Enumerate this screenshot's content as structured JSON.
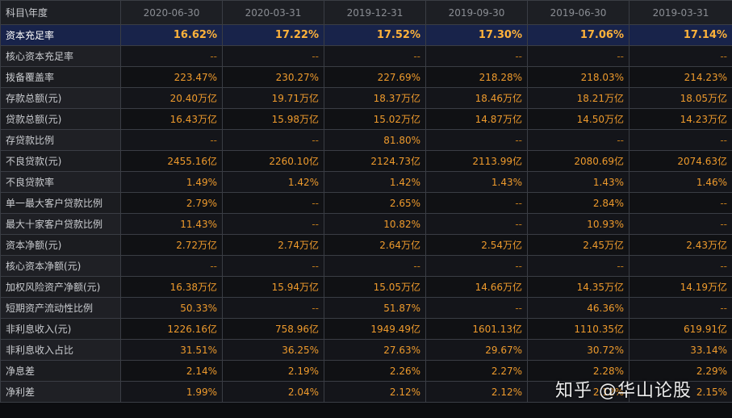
{
  "header": {
    "corner": "科目\\年度",
    "dates": [
      "2020-06-30",
      "2020-03-31",
      "2019-12-31",
      "2019-09-30",
      "2019-06-30",
      "2019-03-31"
    ]
  },
  "rows": [
    {
      "label": "资本充足率",
      "values": [
        "16.62%",
        "17.22%",
        "17.52%",
        "17.30%",
        "17.06%",
        "17.14%"
      ]
    },
    {
      "label": "核心资本充足率",
      "values": [
        "--",
        "--",
        "--",
        "--",
        "--",
        "--"
      ]
    },
    {
      "label": "拨备覆盖率",
      "values": [
        "223.47%",
        "230.27%",
        "227.69%",
        "218.28%",
        "218.03%",
        "214.23%"
      ]
    },
    {
      "label": "存款总额(元)",
      "values": [
        "20.40万亿",
        "19.71万亿",
        "18.37万亿",
        "18.46万亿",
        "18.21万亿",
        "18.05万亿"
      ]
    },
    {
      "label": "贷款总额(元)",
      "values": [
        "16.43万亿",
        "15.98万亿",
        "15.02万亿",
        "14.87万亿",
        "14.50万亿",
        "14.23万亿"
      ]
    },
    {
      "label": "存贷款比例",
      "values": [
        "--",
        "--",
        "81.80%",
        "--",
        "--",
        "--"
      ]
    },
    {
      "label": "不良贷款(元)",
      "values": [
        "2455.16亿",
        "2260.10亿",
        "2124.73亿",
        "2113.99亿",
        "2080.69亿",
        "2074.63亿"
      ]
    },
    {
      "label": "不良贷款率",
      "values": [
        "1.49%",
        "1.42%",
        "1.42%",
        "1.43%",
        "1.43%",
        "1.46%"
      ]
    },
    {
      "label": "单一最大客户贷款比例",
      "values": [
        "2.79%",
        "--",
        "2.65%",
        "--",
        "2.84%",
        "--"
      ]
    },
    {
      "label": "最大十家客户贷款比例",
      "values": [
        "11.43%",
        "--",
        "10.82%",
        "--",
        "10.93%",
        "--"
      ]
    },
    {
      "label": "资本净额(元)",
      "values": [
        "2.72万亿",
        "2.74万亿",
        "2.64万亿",
        "2.54万亿",
        "2.45万亿",
        "2.43万亿"
      ]
    },
    {
      "label": "核心资本净额(元)",
      "values": [
        "--",
        "--",
        "--",
        "--",
        "--",
        "--"
      ]
    },
    {
      "label": "加权风险资产净额(元)",
      "values": [
        "16.38万亿",
        "15.94万亿",
        "15.05万亿",
        "14.66万亿",
        "14.35万亿",
        "14.19万亿"
      ]
    },
    {
      "label": "短期资产流动性比例",
      "values": [
        "50.33%",
        "--",
        "51.87%",
        "--",
        "46.36%",
        "--"
      ]
    },
    {
      "label": "非利息收入(元)",
      "values": [
        "1226.16亿",
        "758.96亿",
        "1949.49亿",
        "1601.13亿",
        "1110.35亿",
        "619.91亿"
      ]
    },
    {
      "label": "非利息收入占比",
      "values": [
        "31.51%",
        "36.25%",
        "27.63%",
        "29.67%",
        "30.72%",
        "33.14%"
      ]
    },
    {
      "label": "净息差",
      "values": [
        "2.14%",
        "2.19%",
        "2.26%",
        "2.27%",
        "2.28%",
        "2.29%"
      ]
    },
    {
      "label": "净利差",
      "values": [
        "1.99%",
        "2.04%",
        "2.12%",
        "2.12%",
        "2.12%",
        "2.15%"
      ]
    }
  ],
  "highlight_row": 0,
  "watermark": "知乎 @华山论股"
}
